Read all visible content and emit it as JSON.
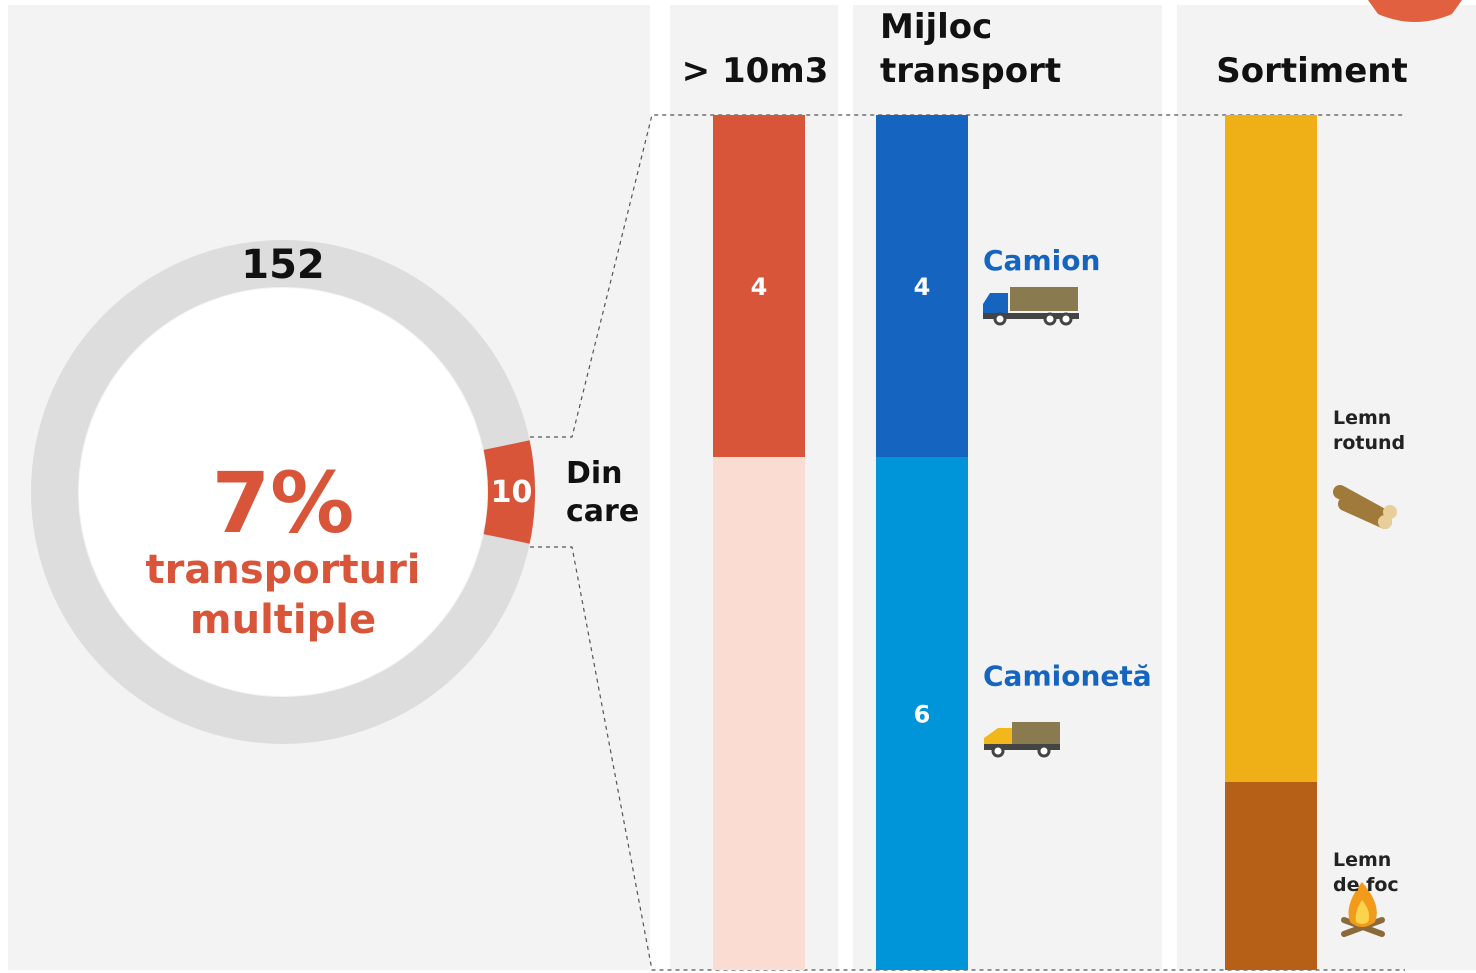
{
  "chart_data": [
    {
      "type": "donut",
      "total": 152,
      "values": [
        10
      ],
      "color": "#d9553a",
      "base_color": "#dddddd",
      "annotation": "7%",
      "subtitle": "transporturi\nmultiple",
      "label": "Din\ncare"
    },
    {
      "type": "stacked_bar",
      "title": "> 10m3",
      "ylim": [
        0,
        10
      ],
      "series": [
        {
          "color": "#d9553a",
          "values": [
            4
          ],
          "show_labels": true
        },
        {
          "color": "#fadcd2",
          "values": [
            6
          ]
        }
      ]
    },
    {
      "type": "stacked_bar",
      "title": "Mijloc\ntransport",
      "ylim": [
        0,
        10
      ],
      "label_color": "#1565c0",
      "series": [
        {
          "name": "Camion",
          "color": "#1565c0",
          "values": [
            4
          ],
          "show_labels": true
        },
        {
          "name": "Camionetă",
          "color": "#0095d9",
          "values": [
            6
          ],
          "show_labels": true
        }
      ]
    },
    {
      "type": "stacked_bar",
      "title": "Sortiment",
      "ylim": [
        0,
        10
      ],
      "label_color": "#222222",
      "series": [
        {
          "name": "Lemn\nrotund",
          "color": "#eeb016",
          "values": [
            7.8
          ]
        },
        {
          "name": "Lemn\nde foc",
          "color": "#b55f17",
          "values": [
            2.2
          ]
        }
      ]
    }
  ]
}
